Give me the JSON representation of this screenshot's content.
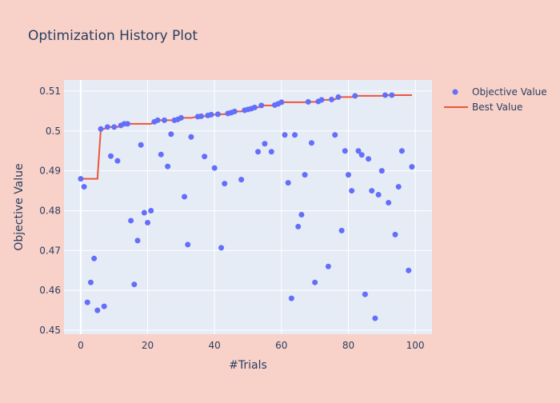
{
  "colors": {
    "paper": "#f8d1c9",
    "plot_bg": "#e5ecf6",
    "grid": "#ffffff",
    "objective": "#636efa",
    "best": "#ef553b"
  },
  "chart_data": {
    "type": "scatter",
    "title": "Optimization History Plot",
    "xlabel": "#Trials",
    "ylabel": "Objective Value",
    "xlim": [
      -5,
      105
    ],
    "ylim": [
      0.449,
      0.5128
    ],
    "xticks": [
      0,
      20,
      40,
      60,
      80,
      100
    ],
    "yticks": [
      0.45,
      0.46,
      0.47,
      0.48,
      0.49,
      0.5,
      0.51
    ],
    "ytick_labels": [
      "0.45",
      "0.46",
      "0.47",
      "0.48",
      "0.49",
      "0.5",
      "0.51"
    ],
    "grid": true,
    "legend_position": "right",
    "series": [
      {
        "name": "Objective Value",
        "mode": "markers",
        "x": [
          0,
          1,
          2,
          3,
          4,
          5,
          6,
          7,
          8,
          9,
          10,
          11,
          12,
          13,
          14,
          15,
          16,
          17,
          18,
          19,
          20,
          21,
          22,
          23,
          24,
          25,
          26,
          27,
          28,
          29,
          30,
          31,
          32,
          33,
          35,
          36,
          37,
          38,
          39,
          40,
          41,
          42,
          43,
          44,
          45,
          46,
          48,
          49,
          50,
          51,
          52,
          53,
          54,
          55,
          57,
          58,
          59,
          60,
          61,
          62,
          63,
          64,
          65,
          66,
          67,
          68,
          69,
          70,
          71,
          72,
          74,
          75,
          76,
          77,
          78,
          79,
          80,
          81,
          82,
          83,
          84,
          85,
          86,
          87,
          88,
          89,
          90,
          91,
          92,
          93,
          94,
          95,
          96,
          98,
          99
        ],
        "y": [
          0.488,
          0.486,
          0.457,
          0.462,
          0.468,
          0.455,
          0.5005,
          0.456,
          0.501,
          0.4937,
          0.501,
          0.4925,
          0.5014,
          0.5018,
          0.5018,
          0.4775,
          0.4615,
          0.4725,
          0.4965,
          0.4795,
          0.477,
          0.48,
          0.5023,
          0.5027,
          0.4941,
          0.5027,
          0.4911,
          0.4992,
          0.5027,
          0.5029,
          0.5033,
          0.4835,
          0.4715,
          0.4985,
          0.5036,
          0.5037,
          0.4936,
          0.5039,
          0.5041,
          0.4907,
          0.5042,
          0.4707,
          0.4868,
          0.5044,
          0.5046,
          0.5049,
          0.4878,
          0.5052,
          0.5054,
          0.5056,
          0.5059,
          0.4948,
          0.5064,
          0.4968,
          0.4948,
          0.5065,
          0.5068,
          0.5072,
          0.499,
          0.487,
          0.458,
          0.499,
          0.476,
          0.479,
          0.489,
          0.5073,
          0.497,
          0.462,
          0.5074,
          0.5078,
          0.466,
          0.5079,
          0.499,
          0.5085,
          0.475,
          0.495,
          0.489,
          0.485,
          0.5088,
          0.495,
          0.494,
          0.459,
          0.493,
          0.485,
          0.453,
          0.484,
          0.49,
          0.509,
          0.482,
          0.509,
          0.474,
          0.486,
          0.495,
          0.465,
          0.491
        ]
      },
      {
        "name": "Best Value",
        "mode": "lines",
        "derived_from": "cumulative maximum of Objective Value"
      }
    ]
  }
}
